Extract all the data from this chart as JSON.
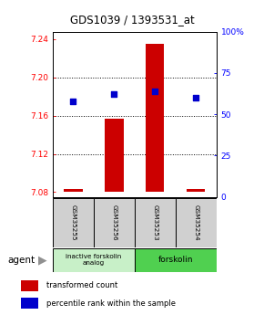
{
  "title": "GDS1039 / 1393531_at",
  "samples": [
    "GSM35255",
    "GSM35256",
    "GSM35253",
    "GSM35254"
  ],
  "bar_values": [
    7.083,
    7.157,
    7.235,
    7.083
  ],
  "bar_base": 7.08,
  "ylim_left": [
    7.075,
    7.248
  ],
  "ylim_right": [
    0,
    100
  ],
  "yticks_left": [
    7.08,
    7.12,
    7.16,
    7.2,
    7.24
  ],
  "ytick_labels_left": [
    "7.08",
    "7.12",
    "7.16",
    "7.20",
    "7.24"
  ],
  "yticks_right": [
    0,
    25,
    50,
    75,
    100
  ],
  "ytick_labels_right": [
    "0",
    "25",
    "50",
    "75",
    "100%"
  ],
  "hlines": [
    7.12,
    7.16,
    7.2
  ],
  "bar_color": "#cc0000",
  "dot_color": "#0000cc",
  "pct_vals": [
    58,
    62,
    64,
    60
  ],
  "group1_label": "inactive forskolin\nanalog",
  "group2_label": "forskolin",
  "group1_color": "#c8f0c8",
  "group2_color": "#50d050",
  "agent_label": "agent",
  "legend_bar_label": "transformed count",
  "legend_dot_label": "percentile rank within the sample",
  "bar_width": 0.45,
  "dot_size": 22,
  "sample_box_color": "#d0d0d0",
  "title_fontsize": 8.5
}
